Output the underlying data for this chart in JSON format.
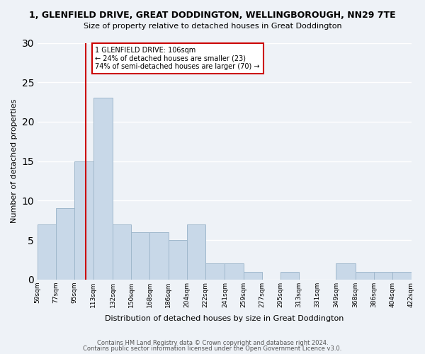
{
  "title": "1, GLENFIELD DRIVE, GREAT DODDINGTON, WELLINGBOROUGH, NN29 7TE",
  "subtitle": "Size of property relative to detached houses in Great Doddington",
  "xlabel": "Distribution of detached houses by size in Great Doddington",
  "ylabel": "Number of detached properties",
  "bar_color": "#c8d8e8",
  "bar_edge_color": "#a0b8cc",
  "property_line_x": 106,
  "property_line_color": "#cc0000",
  "annotation_title": "1 GLENFIELD DRIVE: 106sqm",
  "annotation_line1": "← 24% of detached houses are smaller (23)",
  "annotation_line2": "74% of semi-detached houses are larger (70) →",
  "annotation_box_color": "#ffffff",
  "annotation_box_edge": "#cc0000",
  "bin_edges": [
    59,
    77,
    95,
    113,
    132,
    150,
    168,
    186,
    204,
    222,
    241,
    259,
    277,
    295,
    313,
    331,
    349,
    368,
    386,
    404,
    422
  ],
  "bin_labels": [
    "59sqm",
    "77sqm",
    "95sqm",
    "113sqm",
    "132sqm",
    "150sqm",
    "168sqm",
    "186sqm",
    "204sqm",
    "222sqm",
    "241sqm",
    "259sqm",
    "277sqm",
    "295sqm",
    "313sqm",
    "331sqm",
    "349sqm",
    "368sqm",
    "386sqm",
    "404sqm",
    "422sqm"
  ],
  "counts": [
    7,
    9,
    15,
    23,
    7,
    6,
    6,
    5,
    7,
    2,
    2,
    1,
    0,
    1,
    0,
    0,
    2,
    1,
    1,
    1
  ],
  "ylim": [
    0,
    30
  ],
  "yticks": [
    0,
    5,
    10,
    15,
    20,
    25,
    30
  ],
  "footer1": "Contains HM Land Registry data © Crown copyright and database right 2024.",
  "footer2": "Contains public sector information licensed under the Open Government Licence v3.0.",
  "bg_color": "#eef2f7",
  "grid_color": "#ffffff"
}
